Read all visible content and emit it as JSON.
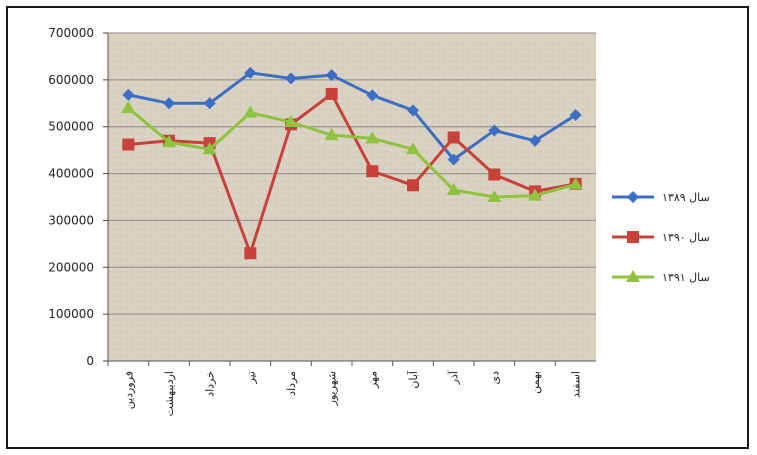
{
  "chart_data": {
    "type": "line",
    "categories": [
      "فروردین",
      "اردیبهشت",
      "خرداد",
      "تیر",
      "مرداد",
      "شهریور",
      "مهر",
      "آبان",
      "آذر",
      "دی",
      "بهمن",
      "اسفند"
    ],
    "series": [
      {
        "name": "سال ۱۳۸۹",
        "color": "#3c6fc4",
        "marker": "diamond",
        "values": [
          568000,
          550000,
          550000,
          615000,
          603000,
          610000,
          567000,
          535000,
          430000,
          492000,
          470000,
          525000
        ]
      },
      {
        "name": "سال ۱۳۹۰",
        "color": "#c8413a",
        "marker": "square",
        "values": [
          462000,
          470000,
          465000,
          230000,
          505000,
          570000,
          405000,
          375000,
          477000,
          398000,
          362000,
          378000
        ]
      },
      {
        "name": "سال ۱۳۹۱",
        "color": "#8fc23f",
        "marker": "triangle",
        "values": [
          540000,
          467000,
          452000,
          530000,
          510000,
          482000,
          475000,
          452000,
          365000,
          350000,
          353000,
          377000
        ]
      }
    ],
    "y_ticks": [
      "700000",
      "600000",
      "500000",
      "400000",
      "300000",
      "200000",
      "100000",
      "0"
    ],
    "ylim": [
      0,
      700000
    ],
    "grid": true,
    "legend_position": "right",
    "plot_background": "#d9d2c2",
    "gridline_color": "#8a8a8a"
  }
}
